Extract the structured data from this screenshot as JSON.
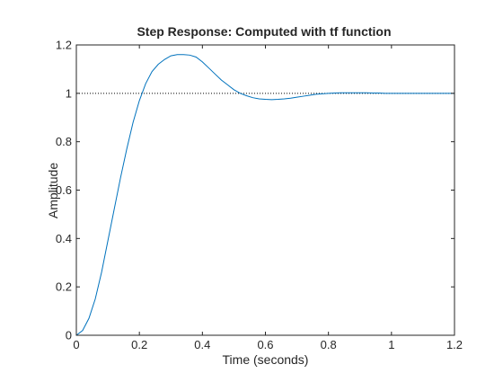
{
  "chart_data": {
    "type": "line",
    "title": "Step Response: Computed with tf function",
    "xlabel": "Time (seconds)",
    "ylabel": "Amplitude",
    "xlim": [
      0,
      1.2
    ],
    "ylim": [
      0,
      1.2
    ],
    "xticks": [
      0,
      0.2,
      0.4,
      0.6,
      0.8,
      1,
      1.2
    ],
    "xtick_labels": [
      "0",
      "0.2",
      "0.4",
      "0.6",
      "0.8",
      "1",
      "1.2"
    ],
    "yticks": [
      0,
      0.2,
      0.4,
      0.6,
      0.8,
      1,
      1.2
    ],
    "ytick_labels": [
      "0",
      "0.2",
      "0.4",
      "0.6",
      "0.8",
      "1",
      "1.2"
    ],
    "grid": false,
    "reference_line": {
      "y": 1,
      "style": "dotted",
      "color": "#000000"
    },
    "series": [
      {
        "color": "#0072BD",
        "x": [
          0,
          0.02,
          0.04,
          0.06,
          0.08,
          0.1,
          0.12,
          0.14,
          0.16,
          0.18,
          0.2,
          0.22,
          0.24,
          0.26,
          0.28,
          0.3,
          0.32,
          0.34,
          0.36,
          0.38,
          0.4,
          0.42,
          0.44,
          0.46,
          0.48,
          0.5,
          0.52,
          0.54,
          0.56,
          0.58,
          0.6,
          0.62,
          0.64,
          0.66,
          0.68,
          0.7,
          0.72,
          0.74,
          0.76,
          0.78,
          0.8,
          0.82,
          0.84,
          0.86,
          0.88,
          0.9,
          0.92,
          0.94,
          0.96,
          0.98,
          1,
          1.02,
          1.04,
          1.06,
          1.08,
          1.1,
          1.12,
          1.14,
          1.16,
          1.18,
          1.2
        ],
        "y": [
          0,
          0.02,
          0.07,
          0.15,
          0.26,
          0.39,
          0.52,
          0.65,
          0.77,
          0.88,
          0.97,
          1.04,
          1.09,
          1.12,
          1.14,
          1.155,
          1.16,
          1.16,
          1.158,
          1.15,
          1.13,
          1.105,
          1.08,
          1.055,
          1.035,
          1.015,
          1.0,
          0.99,
          0.982,
          0.977,
          0.975,
          0.974,
          0.975,
          0.977,
          0.98,
          0.984,
          0.988,
          0.992,
          0.996,
          0.998,
          1.0,
          1.001,
          1.002,
          1.002,
          1.002,
          1.002,
          1.002,
          1.001,
          1.001,
          1.0,
          1.0,
          1.0,
          1.0,
          1.0,
          1.0,
          1.0,
          1.0,
          1.0,
          1.0,
          1.0,
          1.0
        ]
      }
    ]
  }
}
